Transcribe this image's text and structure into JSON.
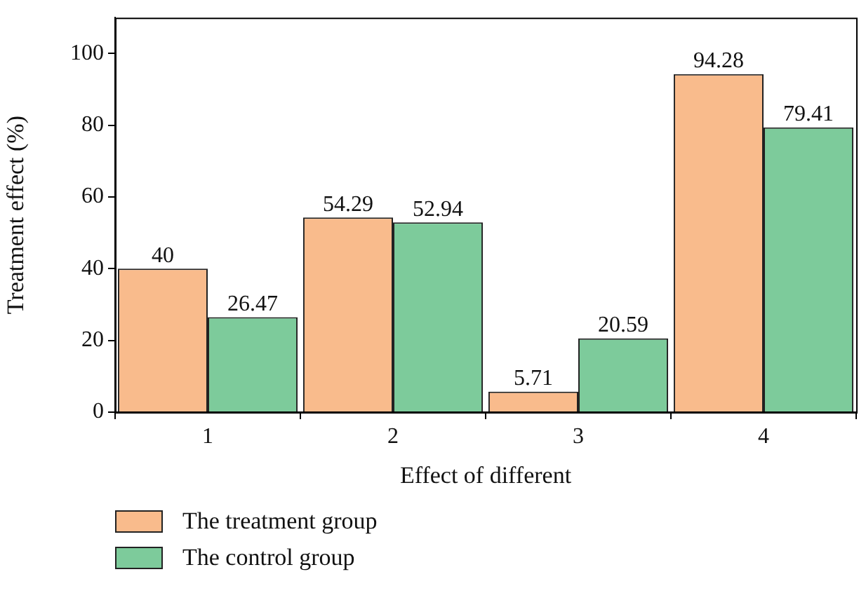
{
  "chart_data": {
    "type": "bar",
    "xlabel": "Effect of different",
    "ylabel": "Treatment effect (%)",
    "categories": [
      "1",
      "2",
      "3",
      "4"
    ],
    "series": [
      {
        "name": "The treatment group",
        "color": "#f9bb8c",
        "values": [
          40,
          54.29,
          5.71,
          94.28
        ]
      },
      {
        "name": "The control group",
        "color": "#7dcb9b",
        "values": [
          26.47,
          52.94,
          20.59,
          79.41
        ]
      }
    ],
    "ylim": [
      0,
      110
    ],
    "yticks": [
      0,
      20,
      40,
      60,
      80,
      100
    ],
    "data_labels": true,
    "legend": "bottom left",
    "grid": false
  }
}
